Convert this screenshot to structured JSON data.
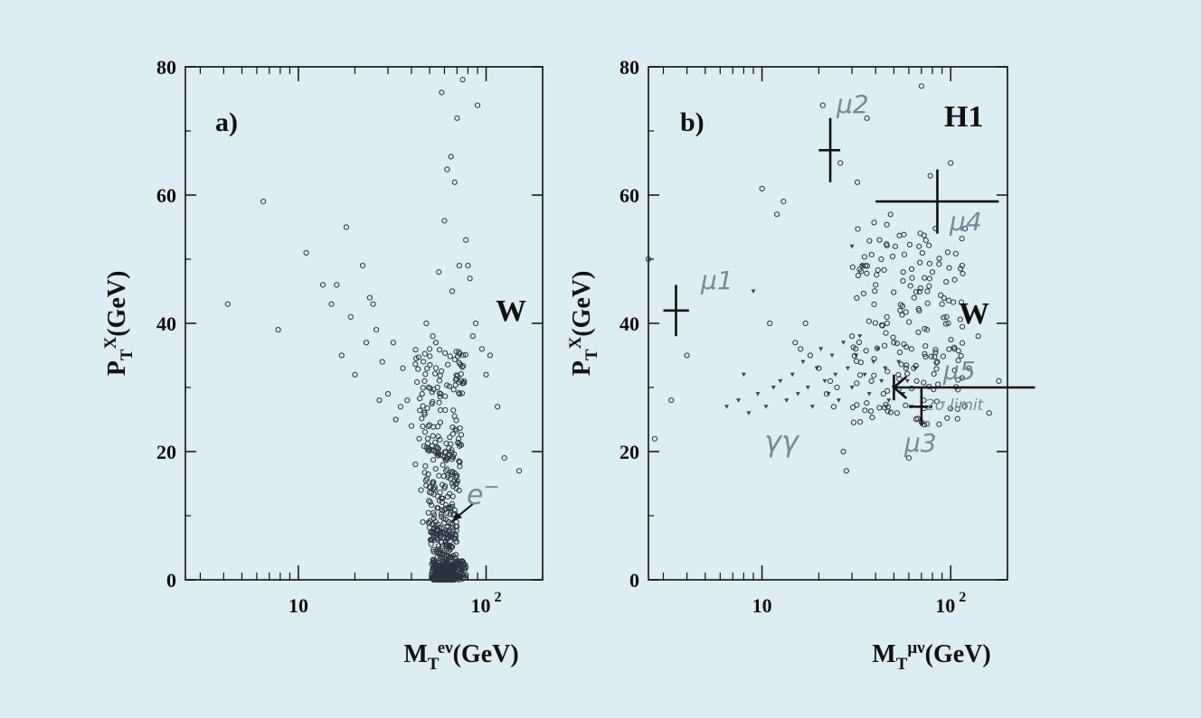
{
  "chart_data": [
    {
      "type": "scatter",
      "panel_label": "a)",
      "region_label": "W",
      "xscale": "log",
      "xlim": [
        2.5,
        200
      ],
      "ylim": [
        0,
        80
      ],
      "xticks": [
        {
          "value": 10,
          "label": "10"
        },
        {
          "value": 100,
          "label": "10",
          "sup": "2"
        }
      ],
      "yticks": [
        {
          "value": 0,
          "label": "0"
        },
        {
          "value": 20,
          "label": "20"
        },
        {
          "value": 40,
          "label": "40"
        },
        {
          "value": 60,
          "label": "60"
        },
        {
          "value": 80,
          "label": "80"
        }
      ],
      "xlabel": {
        "main": "M",
        "sub": "T",
        "sup": "eν",
        "unit": "(GeV)"
      },
      "ylabel": {
        "main": "P",
        "sub": "T",
        "sup": "X",
        "unit": "(GeV)"
      },
      "annotations": [
        {
          "text": "e",
          "sup": "−",
          "x": 88,
          "y": 12,
          "arrow_to": [
            70,
            9
          ]
        }
      ],
      "points": [
        [
          4.2,
          43
        ],
        [
          6.5,
          59
        ],
        [
          7.8,
          39
        ],
        [
          11,
          51
        ],
        [
          13.5,
          46
        ],
        [
          15,
          43
        ],
        [
          16,
          46
        ],
        [
          17,
          35
        ],
        [
          18,
          55
        ],
        [
          19,
          41
        ],
        [
          20,
          32
        ],
        [
          22,
          49
        ],
        [
          23,
          37
        ],
        [
          24,
          44
        ],
        [
          25,
          43
        ],
        [
          26,
          39
        ],
        [
          27,
          28
        ],
        [
          28,
          34
        ],
        [
          30,
          29
        ],
        [
          32,
          37
        ],
        [
          33,
          25
        ],
        [
          35,
          27
        ],
        [
          36,
          33
        ],
        [
          38,
          28
        ],
        [
          40,
          24
        ],
        [
          42,
          18
        ],
        [
          44,
          22
        ],
        [
          45,
          14
        ],
        [
          46,
          9
        ],
        [
          47,
          31
        ],
        [
          48,
          40
        ],
        [
          50,
          36
        ],
        [
          52,
          38
        ],
        [
          54,
          37
        ],
        [
          55,
          30
        ],
        [
          56,
          48
        ],
        [
          58,
          76
        ],
        [
          60,
          56
        ],
        [
          62,
          64
        ],
        [
          65,
          66
        ],
        [
          66,
          45
        ],
        [
          68,
          62
        ],
        [
          70,
          72
        ],
        [
          72,
          49
        ],
        [
          75,
          78
        ],
        [
          78,
          53
        ],
        [
          80,
          49
        ],
        [
          82,
          47
        ],
        [
          85,
          38
        ],
        [
          88,
          40
        ],
        [
          90,
          74
        ],
        [
          95,
          36
        ],
        [
          100,
          32
        ],
        [
          105,
          35
        ],
        [
          115,
          27
        ],
        [
          125,
          19
        ],
        [
          150,
          17
        ]
      ]
    },
    {
      "type": "scatter",
      "panel_label": "b)",
      "region_label": "W",
      "experiment_label": "H1",
      "xscale": "log",
      "xlim": [
        2.5,
        200
      ],
      "ylim": [
        0,
        80
      ],
      "xticks": [
        {
          "value": 10,
          "label": "10"
        },
        {
          "value": 100,
          "label": "10",
          "sup": "2"
        }
      ],
      "yticks": [
        {
          "value": 0,
          "label": "0"
        },
        {
          "value": 20,
          "label": "20"
        },
        {
          "value": 40,
          "label": "40"
        },
        {
          "value": 60,
          "label": "60"
        },
        {
          "value": 80,
          "label": "80"
        }
      ],
      "xlabel": {
        "main": "M",
        "sub": "T",
        "sup": "μν",
        "unit": "(GeV)"
      },
      "ylabel": {
        "main": "P",
        "sub": "T",
        "sup": "X",
        "unit": "(GeV)"
      },
      "gamma_label": "γγ",
      "limit_label": "2σ limit",
      "muon_events": [
        {
          "name": "μ1",
          "x": 3.5,
          "y": 42,
          "x_lo": 3.0,
          "x_hi": 4.1,
          "y_err": 4
        },
        {
          "name": "μ2",
          "x": 23,
          "y": 67,
          "x_lo": 20,
          "x_hi": 26,
          "y_err": 5
        },
        {
          "name": "μ3",
          "x": 70,
          "y": 27,
          "x_lo": 60,
          "x_hi": 80,
          "y_err": 3
        },
        {
          "name": "μ4",
          "x": 85,
          "y": 59,
          "x_lo": 40,
          "x_hi": 180,
          "y_err": 5
        },
        {
          "name": "μ5",
          "x": 50,
          "y": 30,
          "x_hi": 280,
          "y_err": 2,
          "lower_limit": true
        }
      ],
      "circle_points": [
        [
          2.5,
          50
        ],
        [
          2.7,
          22
        ],
        [
          3.3,
          28
        ],
        [
          4,
          35
        ],
        [
          10,
          61
        ],
        [
          11,
          40
        ],
        [
          12,
          57
        ],
        [
          13,
          59
        ],
        [
          15,
          37
        ],
        [
          16,
          36
        ],
        [
          17,
          40
        ],
        [
          18,
          35
        ],
        [
          20,
          33
        ],
        [
          21,
          74
        ],
        [
          22,
          29
        ],
        [
          23,
          31
        ],
        [
          24,
          27
        ],
        [
          25,
          30
        ],
        [
          26,
          65
        ],
        [
          27,
          20
        ],
        [
          28,
          17
        ],
        [
          30,
          38
        ],
        [
          32,
          62
        ],
        [
          34,
          49
        ],
        [
          36,
          72
        ],
        [
          38,
          31
        ],
        [
          40,
          46
        ],
        [
          42,
          53
        ],
        [
          44,
          29
        ],
        [
          46,
          40
        ],
        [
          48,
          57
        ],
        [
          50,
          37
        ],
        [
          52,
          26
        ],
        [
          54,
          42
        ],
        [
          56,
          48
        ],
        [
          58,
          33
        ],
        [
          60,
          19
        ],
        [
          62,
          36
        ],
        [
          64,
          44
        ],
        [
          66,
          31
        ],
        [
          68,
          52
        ],
        [
          70,
          77
        ],
        [
          72,
          28
        ],
        [
          75,
          39
        ],
        [
          78,
          63
        ],
        [
          80,
          48
        ],
        [
          85,
          34
        ],
        [
          90,
          43
        ],
        [
          95,
          41
        ],
        [
          100,
          65
        ],
        [
          105,
          36
        ],
        [
          115,
          49
        ],
        [
          125,
          33
        ],
        [
          140,
          38
        ],
        [
          160,
          26
        ],
        [
          180,
          31
        ]
      ],
      "triangle_points": [
        [
          6.5,
          27
        ],
        [
          7.5,
          28
        ],
        [
          8.5,
          26
        ],
        [
          9.5,
          29
        ],
        [
          10.5,
          27
        ],
        [
          11.5,
          30
        ],
        [
          12.5,
          31
        ],
        [
          13.5,
          28
        ],
        [
          14.5,
          32
        ],
        [
          15.5,
          29
        ],
        [
          16.5,
          34
        ],
        [
          17.5,
          30
        ],
        [
          18.5,
          27
        ],
        [
          19.5,
          33
        ],
        [
          20.5,
          36
        ],
        [
          21.5,
          31
        ],
        [
          22.5,
          29
        ],
        [
          23.5,
          35
        ],
        [
          24.5,
          32
        ],
        [
          25.5,
          28
        ],
        [
          27,
          37
        ],
        [
          28.5,
          33
        ],
        [
          30,
          30
        ],
        [
          31.5,
          35
        ],
        [
          33,
          38
        ],
        [
          35,
          32
        ],
        [
          37,
          29
        ],
        [
          39,
          34
        ],
        [
          41,
          36
        ],
        [
          43,
          31
        ],
        [
          45,
          33
        ],
        [
          47,
          28
        ],
        [
          50,
          30
        ],
        [
          53,
          34
        ],
        [
          56,
          29
        ],
        [
          59,
          31
        ],
        [
          62,
          27
        ],
        [
          65,
          33
        ],
        [
          8,
          32
        ],
        [
          9,
          45
        ],
        [
          30,
          52
        ],
        [
          34,
          49
        ]
      ]
    }
  ]
}
